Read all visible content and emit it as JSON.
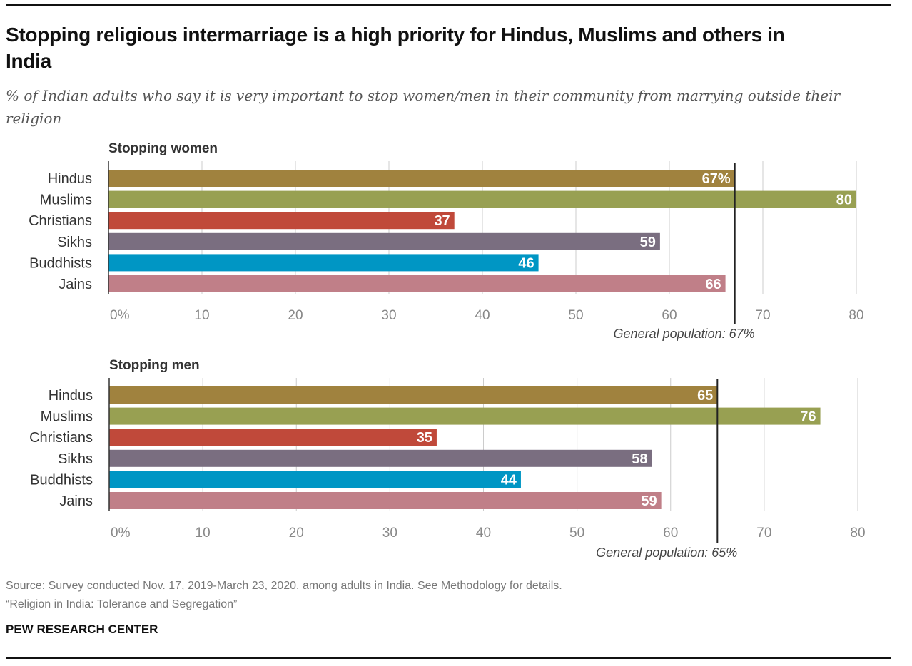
{
  "title": "Stopping religious intermarriage is a high priority for Hindus, Muslims and others in India",
  "subtitle": "% of Indian adults who say it is very important to stop women/men in their community from marrying outside their religion",
  "source": "Source: Survey conducted Nov. 17, 2019-March 23, 2020, among adults in India. See Methodology for details.",
  "report": "“Religion in India: Tolerance and Segregation”",
  "brand": "PEW RESEARCH CENTER",
  "colors": {
    "Hindus": "#a0823e",
    "Muslims": "#98a052",
    "Christians": "#c0493a",
    "Sikhs": "#7a6e80",
    "Buddhists": "#0096c4",
    "Jains": "#c07f88"
  },
  "chart_data": [
    {
      "type": "bar",
      "orientation": "horizontal",
      "title": "Stopping women",
      "categories": [
        "Hindus",
        "Muslims",
        "Christians",
        "Sikhs",
        "Buddhists",
        "Jains"
      ],
      "values": [
        67,
        80,
        37,
        59,
        46,
        66
      ],
      "data_labels": [
        "67%",
        "80",
        "37",
        "59",
        "46",
        "66"
      ],
      "xlim": [
        0,
        80
      ],
      "ticks": [
        "0%",
        "10",
        "20",
        "30",
        "40",
        "50",
        "60",
        "70",
        "80"
      ],
      "grid": true,
      "reference": {
        "value": 67,
        "label": "General population: 67%"
      }
    },
    {
      "type": "bar",
      "orientation": "horizontal",
      "title": "Stopping men",
      "categories": [
        "Hindus",
        "Muslims",
        "Christians",
        "Sikhs",
        "Buddhists",
        "Jains"
      ],
      "values": [
        65,
        76,
        35,
        58,
        44,
        59
      ],
      "data_labels": [
        "65",
        "76",
        "35",
        "58",
        "44",
        "59"
      ],
      "xlim": [
        0,
        80
      ],
      "ticks": [
        "0%",
        "10",
        "20",
        "30",
        "40",
        "50",
        "60",
        "70",
        "80"
      ],
      "grid": true,
      "reference": {
        "value": 65,
        "label": "General population: 65%"
      }
    }
  ]
}
